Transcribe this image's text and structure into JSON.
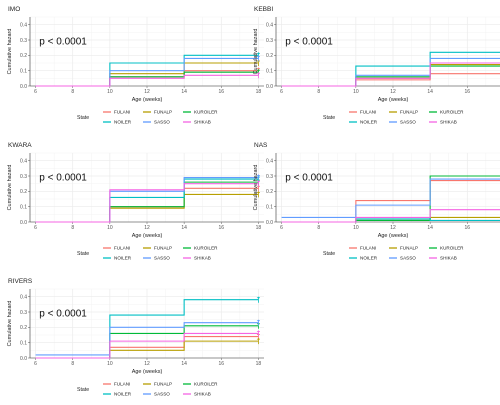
{
  "chart_data": [
    {
      "type": "line",
      "step": true,
      "title": "IMO",
      "xlabel": "Age (weeks)",
      "ylabel": "Cumulative hazard",
      "xlim": [
        5.7,
        18.3
      ],
      "ylim": [
        0,
        0.45
      ],
      "xticks": [
        "6",
        "8",
        "10",
        "12",
        "14",
        "16",
        "18"
      ],
      "yticks": [
        "0.0",
        "0.1",
        "0.2",
        "0.3",
        "0.4"
      ],
      "annotation": "p < 0.0001",
      "grid": true,
      "series": [
        {
          "name": "FULANI",
          "x": [
            6,
            10,
            14,
            18
          ],
          "values": [
            0.0,
            0.06,
            0.1,
            0.1
          ]
        },
        {
          "name": "FUNALP",
          "x": [
            6,
            10,
            14,
            18
          ],
          "values": [
            0.0,
            0.08,
            0.15,
            0.15
          ]
        },
        {
          "name": "KUROILER",
          "x": [
            6,
            10,
            14,
            18
          ],
          "values": [
            0.0,
            0.06,
            0.09,
            0.09
          ]
        },
        {
          "name": "NOILER",
          "x": [
            6,
            10,
            14,
            18
          ],
          "values": [
            0.0,
            0.15,
            0.2,
            0.2
          ]
        },
        {
          "name": "SASSO",
          "x": [
            6,
            10,
            14,
            18
          ],
          "values": [
            0.0,
            0.1,
            0.18,
            0.18
          ]
        },
        {
          "name": "SHIKAB",
          "x": [
            6,
            10,
            14,
            18
          ],
          "values": [
            0.0,
            0.05,
            0.07,
            0.07
          ]
        }
      ]
    },
    {
      "type": "line",
      "step": true,
      "title": "KEBBI",
      "xlabel": "Age (weeks)",
      "ylabel": "Cumulative hazard",
      "xlim": [
        5.7,
        18.3
      ],
      "ylim": [
        0,
        0.45
      ],
      "xticks": [
        "6",
        "8",
        "10",
        "12",
        "14",
        "16",
        "18"
      ],
      "yticks": [
        "0.0",
        "0.1",
        "0.2",
        "0.3",
        "0.4"
      ],
      "annotation": "p < 0.0001",
      "grid": true,
      "series": [
        {
          "name": "FULANI",
          "x": [
            6,
            10,
            14,
            18
          ],
          "values": [
            0.0,
            0.04,
            0.08,
            0.08
          ]
        },
        {
          "name": "FUNALP",
          "x": [
            6,
            10,
            14,
            18
          ],
          "values": [
            0.0,
            0.05,
            0.14,
            0.14
          ]
        },
        {
          "name": "KUROILER",
          "x": [
            6,
            10,
            14,
            18
          ],
          "values": [
            0.0,
            0.06,
            0.13,
            0.13
          ]
        },
        {
          "name": "NOILER",
          "x": [
            6,
            10,
            14,
            18
          ],
          "values": [
            0.0,
            0.13,
            0.22,
            0.22
          ]
        },
        {
          "name": "SASSO",
          "x": [
            6,
            10,
            14,
            18
          ],
          "values": [
            0.0,
            0.07,
            0.18,
            0.18
          ]
        },
        {
          "name": "SHIKAB",
          "x": [
            6,
            10,
            14,
            18
          ],
          "values": [
            0.0,
            0.05,
            0.15,
            0.15
          ]
        }
      ]
    },
    {
      "type": "line",
      "step": true,
      "title": "KWARA",
      "xlabel": "Age (weeks)",
      "ylabel": "Cumulative hazard",
      "xlim": [
        5.7,
        18.3
      ],
      "ylim": [
        0,
        0.45
      ],
      "xticks": [
        "6",
        "8",
        "10",
        "12",
        "14",
        "16",
        "18"
      ],
      "yticks": [
        "0.0",
        "0.1",
        "0.2",
        "0.3",
        "0.4"
      ],
      "annotation": "p < 0.0001",
      "grid": true,
      "series": [
        {
          "name": "FULANI",
          "x": [
            6,
            10,
            14,
            18
          ],
          "values": [
            0.0,
            0.1,
            0.22,
            0.22
          ]
        },
        {
          "name": "FUNALP",
          "x": [
            6,
            10,
            14,
            18
          ],
          "values": [
            0.0,
            0.09,
            0.18,
            0.18
          ]
        },
        {
          "name": "KUROILER",
          "x": [
            6,
            10,
            14,
            18
          ],
          "values": [
            0.0,
            0.1,
            0.26,
            0.26
          ]
        },
        {
          "name": "NOILER",
          "x": [
            6,
            10,
            14,
            18
          ],
          "values": [
            0.0,
            0.16,
            0.28,
            0.28
          ]
        },
        {
          "name": "SASSO",
          "x": [
            6,
            10,
            14,
            18
          ],
          "values": [
            0.0,
            0.2,
            0.29,
            0.29
          ]
        },
        {
          "name": "SHIKAB",
          "x": [
            6,
            10,
            14,
            18
          ],
          "values": [
            0.0,
            0.21,
            0.25,
            0.25
          ]
        }
      ]
    },
    {
      "type": "line",
      "step": true,
      "title": "NAS",
      "xlabel": "Age (weeks)",
      "ylabel": "Cumulative hazard",
      "xlim": [
        5.7,
        18.3
      ],
      "ylim": [
        0,
        0.45
      ],
      "xticks": [
        "6",
        "8",
        "10",
        "12",
        "14",
        "16",
        "18"
      ],
      "yticks": [
        "0.0",
        "0.1",
        "0.2",
        "0.3",
        "0.4"
      ],
      "annotation": "p < 0.0001",
      "grid": true,
      "series": [
        {
          "name": "FULANI",
          "x": [
            6,
            10,
            14,
            18
          ],
          "values": [
            0.0,
            0.14,
            0.27,
            0.27
          ]
        },
        {
          "name": "FUNALP",
          "x": [
            6,
            10,
            14,
            18
          ],
          "values": [
            0.0,
            0.01,
            0.03,
            0.03
          ]
        },
        {
          "name": "KUROILER",
          "x": [
            6,
            10,
            14,
            18
          ],
          "values": [
            0.0,
            0.01,
            0.3,
            0.3
          ]
        },
        {
          "name": "NOILER",
          "x": [
            6,
            10,
            14,
            18
          ],
          "values": [
            0.0,
            0.02,
            0.01,
            0.01
          ]
        },
        {
          "name": "SASSO",
          "x": [
            6,
            10,
            14,
            18
          ],
          "values": [
            0.03,
            0.11,
            0.28,
            0.28
          ]
        },
        {
          "name": "SHIKAB",
          "x": [
            6,
            10,
            14,
            18
          ],
          "values": [
            0.0,
            0.03,
            0.08,
            0.08
          ]
        }
      ]
    },
    {
      "type": "line",
      "step": true,
      "title": "RIVERS",
      "xlabel": "Age (weeks)",
      "ylabel": "Cumulative hazard",
      "xlim": [
        5.7,
        18.3
      ],
      "ylim": [
        0,
        0.45
      ],
      "xticks": [
        "6",
        "8",
        "10",
        "12",
        "14",
        "16",
        "18"
      ],
      "yticks": [
        "0.0",
        "0.1",
        "0.2",
        "0.3",
        "0.4"
      ],
      "annotation": "p < 0.0001",
      "grid": true,
      "series": [
        {
          "name": "FULANI",
          "x": [
            6,
            10,
            14,
            18
          ],
          "values": [
            0.0,
            0.07,
            0.14,
            0.14
          ]
        },
        {
          "name": "FUNALP",
          "x": [
            6,
            10,
            14,
            18
          ],
          "values": [
            0.0,
            0.05,
            0.11,
            0.11
          ]
        },
        {
          "name": "KUROILER",
          "x": [
            6,
            10,
            14,
            18
          ],
          "values": [
            0.0,
            0.16,
            0.21,
            0.21
          ]
        },
        {
          "name": "NOILER",
          "x": [
            6,
            10,
            14,
            18
          ],
          "values": [
            0.0,
            0.28,
            0.38,
            0.38
          ]
        },
        {
          "name": "SASSO",
          "x": [
            6,
            10,
            14,
            18
          ],
          "values": [
            0.02,
            0.2,
            0.23,
            0.23
          ]
        },
        {
          "name": "SHIKAB",
          "x": [
            6,
            10,
            14,
            18
          ],
          "values": [
            0.0,
            0.11,
            0.16,
            0.16
          ]
        }
      ]
    }
  ],
  "legend": {
    "title": "State",
    "items": [
      {
        "name": "FULANI",
        "color": "#f8766d"
      },
      {
        "name": "FUNALP",
        "color": "#b79f00"
      },
      {
        "name": "KUROILER",
        "color": "#00ba38"
      },
      {
        "name": "NOILER",
        "color": "#00bfc4"
      },
      {
        "name": "SASSO",
        "color": "#619cff"
      },
      {
        "name": "SHIKAB",
        "color": "#f564e3"
      }
    ]
  },
  "colors": {
    "grid": "#ebebeb",
    "axis": "#333333"
  }
}
